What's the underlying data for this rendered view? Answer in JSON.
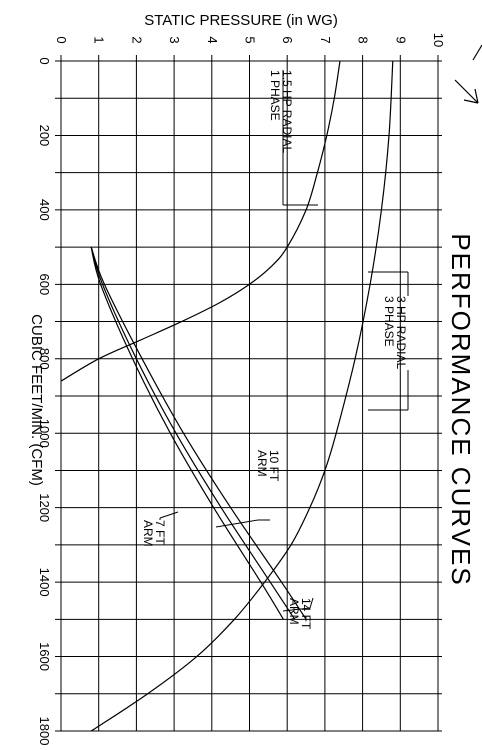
{
  "chart_data": {
    "type": "line",
    "title": "PERFORMANCE CURVES",
    "xlabel": "CUBIC FEET/MIN. (CFM)",
    "ylabel": "STATIC PRESSURE (in WG)",
    "xlim": [
      0,
      1800
    ],
    "ylim": [
      0,
      10
    ],
    "x_ticks": [
      "0",
      "200",
      "400",
      "600",
      "800",
      "1000",
      "1200",
      "1400",
      "1600",
      "1800"
    ],
    "y_ticks": [
      "0",
      "1",
      "2",
      "3",
      "4",
      "5",
      "6",
      "7",
      "8",
      "9",
      "10"
    ],
    "grid": true,
    "orientation": "rotated-90-clockwise",
    "series": [
      {
        "name": "1.5 HP RADIAL 1 PHASE",
        "label_lines": [
          "1.5 HP RADIAL",
          "1 PHASE"
        ],
        "kind": "fan",
        "x": [
          0,
          100,
          200,
          300,
          400,
          500,
          550,
          600,
          650,
          700,
          750,
          800,
          860
        ],
        "y": [
          7.4,
          7.25,
          7.05,
          6.8,
          6.5,
          6.0,
          5.6,
          5.0,
          4.2,
          3.2,
          2.1,
          1.0,
          0
        ]
      },
      {
        "name": "3 HP RADIAL 3 PHASE",
        "label_lines": [
          "3 HP RADIAL",
          "3 PHASE"
        ],
        "kind": "fan",
        "x": [
          0,
          200,
          400,
          600,
          800,
          1000,
          1100,
          1200,
          1300,
          1400,
          1500,
          1600,
          1700,
          1800
        ],
        "y": [
          8.8,
          8.7,
          8.5,
          8.2,
          7.8,
          7.3,
          7.0,
          6.6,
          6.1,
          5.4,
          4.6,
          3.6,
          2.3,
          0.8
        ]
      },
      {
        "name": "7 FT ARM",
        "label_lines": [
          "7 FT",
          "ARM"
        ],
        "kind": "system",
        "x": [
          500,
          600,
          800,
          1000,
          1200,
          1400,
          1500
        ],
        "y": [
          0.8,
          1.05,
          1.9,
          2.9,
          4.05,
          5.3,
          5.9
        ]
      },
      {
        "name": "10 FT ARM",
        "label_lines": [
          "10 FT",
          "ARM"
        ],
        "kind": "system",
        "x": [
          500,
          600,
          800,
          1000,
          1200,
          1400,
          1500
        ],
        "y": [
          0.8,
          1.1,
          2.0,
          3.05,
          4.25,
          5.55,
          6.2
        ]
      },
      {
        "name": "14 FT ARM",
        "label_lines": [
          "14 FT",
          "ARM"
        ],
        "kind": "system",
        "x": [
          500,
          600,
          800,
          1000,
          1200,
          1400,
          1500
        ],
        "y": [
          0.8,
          1.15,
          2.15,
          3.25,
          4.5,
          5.85,
          6.5
        ]
      }
    ]
  }
}
